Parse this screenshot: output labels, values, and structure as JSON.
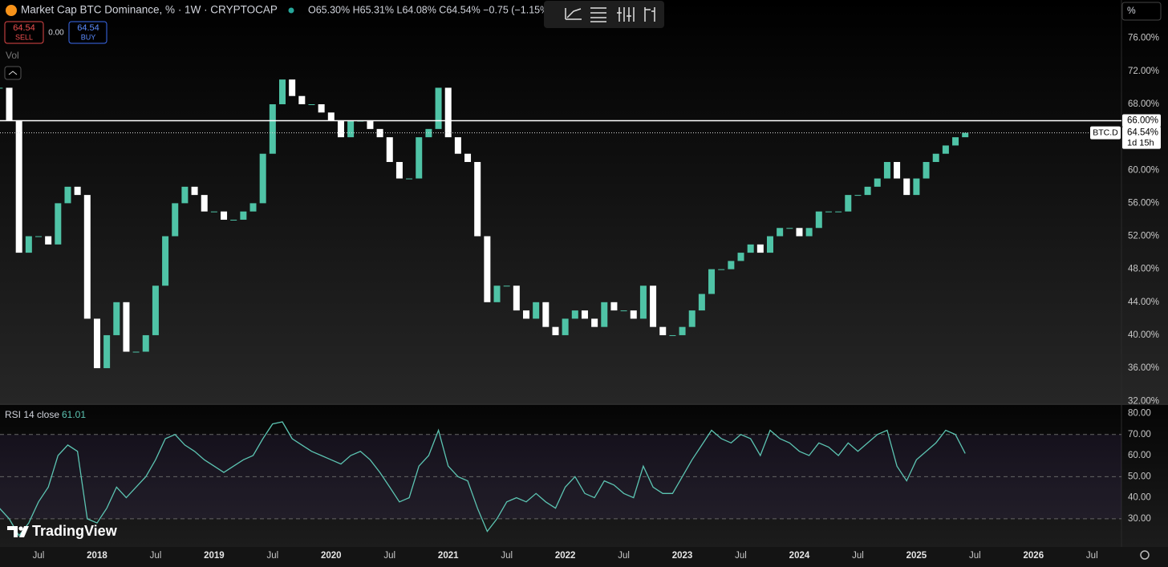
{
  "header": {
    "title": "Market Cap BTC Dominance, % · 1W · CRYPTOCAP",
    "ohlc": "O65.30% H65.31% L64.08% C64.54% −0.75 (−1.15%)",
    "scale_button": "%",
    "volume": "Vol"
  },
  "order_panel": {
    "sell_price": "64.54",
    "sell": "SELL",
    "spread": "0.00",
    "buy_price": "64.54",
    "buy": "BUY"
  },
  "watermark": "TradingView",
  "chart_data": [
    {
      "type": "candlestick",
      "up_color": "#4fc3a6",
      "down_color": "#ffffff",
      "categories": [
        null,
        null,
        null,
        null,
        "Jul",
        null,
        null,
        null,
        null,
        null,
        "2018",
        null,
        null,
        null,
        null,
        null,
        "Jul",
        null,
        null,
        null,
        null,
        null,
        "2019",
        null,
        null,
        null,
        null,
        null,
        "Jul",
        null,
        null,
        null,
        null,
        null,
        "2020",
        null,
        null,
        null,
        null,
        null,
        "Jul",
        null,
        null,
        null,
        null,
        null,
        "2021",
        null,
        null,
        null,
        null,
        null,
        "Jul",
        null,
        null,
        null,
        null,
        null,
        "2022",
        null,
        null,
        null,
        null,
        null,
        "Jul",
        null,
        null,
        null,
        null,
        null,
        "2023",
        null,
        null,
        null,
        null,
        null,
        "Jul",
        null,
        null,
        null,
        null,
        null,
        "2024",
        null,
        null,
        null,
        null,
        null,
        "Jul",
        null,
        null,
        null,
        null,
        null,
        "2025",
        null,
        null,
        null,
        null,
        null,
        "Jul",
        null,
        null,
        null,
        null,
        null,
        "2026",
        null,
        null,
        null,
        null,
        null,
        "Jul",
        null,
        null
      ],
      "values": [
        70,
        66,
        50,
        52,
        52,
        51,
        56,
        58,
        57,
        42,
        36,
        40,
        44,
        38,
        38,
        40,
        46,
        52,
        56,
        58,
        57,
        55,
        55,
        54,
        54,
        55,
        56,
        62,
        68,
        71,
        69,
        68,
        68,
        67,
        66,
        64,
        66,
        66,
        65,
        64,
        61,
        59,
        59,
        64,
        65,
        70,
        64,
        62,
        61,
        52,
        44,
        46,
        46,
        43,
        42,
        44,
        41,
        40,
        42,
        43,
        42,
        41,
        44,
        43,
        43,
        42,
        46,
        41,
        40,
        40,
        41,
        43,
        45,
        48,
        48,
        49,
        50,
        51,
        50,
        52,
        53,
        53,
        52,
        53,
        55,
        55,
        55,
        57,
        57,
        58,
        59,
        61,
        59,
        57,
        59,
        61,
        62,
        63,
        64,
        64.54,
        null,
        null,
        null,
        null,
        null,
        null,
        null,
        null,
        null,
        null,
        null,
        null,
        null,
        null,
        null
      ],
      "ylim": [
        31.73,
        80.64
      ],
      "yticks": [
        {
          "value": 32,
          "label": "32.00%"
        },
        {
          "value": 36,
          "label": "36.00%"
        },
        {
          "value": 40,
          "label": "40.00%"
        },
        {
          "value": 44,
          "label": "44.00%"
        },
        {
          "value": 48,
          "label": "48.00%"
        },
        {
          "value": 52,
          "label": "52.00%"
        },
        {
          "value": 56,
          "label": "56.00%"
        },
        {
          "value": 60,
          "label": "60.00%"
        },
        {
          "value": 64,
          "label": "64.00%"
        },
        {
          "value": 68,
          "label": "68.00%"
        },
        {
          "value": 72,
          "label": "72.00%"
        },
        {
          "value": 76,
          "label": "76.00%"
        }
      ],
      "hline": {
        "value": 66,
        "label": "66.00%"
      },
      "last_price": {
        "value": 64.54,
        "label": "64.54%",
        "symbol": "BTC.D",
        "countdown": "1d 15h"
      }
    },
    {
      "type": "line",
      "title": "RSI 14 close",
      "color": "#5cc4b2",
      "categories": [
        null,
        null,
        null,
        null,
        "Jul",
        null,
        null,
        null,
        null,
        null,
        "2018",
        null,
        null,
        null,
        null,
        null,
        "Jul",
        null,
        null,
        null,
        null,
        null,
        "2019",
        null,
        null,
        null,
        null,
        null,
        "Jul",
        null,
        null,
        null,
        null,
        null,
        "2020",
        null,
        null,
        null,
        null,
        null,
        "Jul",
        null,
        null,
        null,
        null,
        null,
        "2021",
        null,
        null,
        null,
        null,
        null,
        "Jul",
        null,
        null,
        null,
        null,
        null,
        "2022",
        null,
        null,
        null,
        null,
        null,
        "Jul",
        null,
        null,
        null,
        null,
        null,
        "2023",
        null,
        null,
        null,
        null,
        null,
        "Jul",
        null,
        null,
        null,
        null,
        null,
        "2024",
        null,
        null,
        null,
        null,
        null,
        "Jul",
        null,
        null,
        null,
        null,
        null,
        "2025",
        null,
        null,
        null,
        null,
        null,
        "Jul",
        null,
        null,
        null,
        null,
        null,
        "2026",
        null,
        null,
        null,
        null,
        null,
        "Jul",
        null,
        null
      ],
      "values": [
        35,
        30,
        22,
        28,
        38,
        45,
        60,
        65,
        62,
        30,
        28,
        35,
        45,
        40,
        45,
        50,
        58,
        68,
        70,
        65,
        62,
        58,
        55,
        52,
        55,
        58,
        60,
        68,
        75,
        76,
        68,
        65,
        62,
        60,
        58,
        56,
        60,
        62,
        58,
        52,
        45,
        38,
        40,
        55,
        60,
        72,
        55,
        50,
        48,
        35,
        24,
        30,
        38,
        40,
        38,
        42,
        38,
        35,
        45,
        50,
        42,
        40,
        48,
        46,
        42,
        40,
        55,
        45,
        42,
        42,
        50,
        58,
        65,
        72,
        68,
        66,
        70,
        68,
        60,
        72,
        68,
        66,
        62,
        60,
        66,
        64,
        60,
        66,
        62,
        66,
        70,
        72,
        55,
        48,
        58,
        62,
        66,
        72,
        70,
        61.01,
        null,
        null,
        null,
        null,
        null,
        null,
        null,
        null,
        null,
        null,
        null,
        null,
        null,
        null,
        null
      ],
      "ylim": [
        17,
        84
      ],
      "yticks": [
        {
          "value": 30,
          "label": "30.00"
        },
        {
          "value": 40,
          "label": "40.00"
        },
        {
          "value": 50,
          "label": "50.00"
        },
        {
          "value": 60,
          "label": "60.00"
        },
        {
          "value": 70,
          "label": "70.00"
        },
        {
          "value": 80,
          "label": "80.00"
        }
      ],
      "levels": [
        70,
        50,
        30
      ]
    }
  ]
}
